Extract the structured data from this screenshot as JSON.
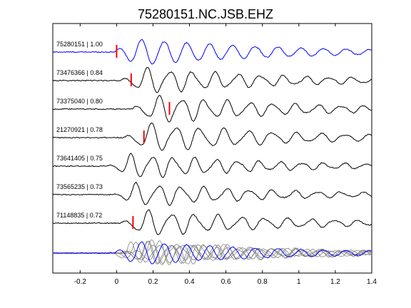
{
  "chart_data": {
    "type": "line",
    "title": "75280151.NC.JSB.EHZ",
    "xlabel": "",
    "ylabel": "",
    "xlim": [
      -0.35,
      1.4
    ],
    "xticks": [
      -0.2,
      0,
      0.2,
      0.4,
      0.6,
      0.8,
      1,
      1.2,
      1.4
    ],
    "xtick_labels": [
      "-0.2",
      "0",
      "0.2",
      "0.4",
      "0.6",
      "0.8",
      "1",
      "1.2",
      "1.4"
    ],
    "grid": false,
    "stack_note": "waveforms stacked vertically; bottom row overlays all traces",
    "traces": [
      {
        "label": "75280151 | 1.00",
        "id": "75280151",
        "cc": 1.0,
        "color": "#0000ff",
        "pick_time": 0.0,
        "onset": -0.02,
        "freq": 8.0,
        "amp": 1.0,
        "phase": 0.0
      },
      {
        "label": "73476366 | 0.84",
        "id": "73476366",
        "cc": 0.84,
        "color": "#000000",
        "pick_time": 0.08,
        "onset": 0.02,
        "freq": 8.0,
        "amp": 0.9,
        "phase": 0.5
      },
      {
        "label": "73375040 | 0.80",
        "id": "73375040",
        "cc": 0.8,
        "color": "#000000",
        "pick_time": 0.29,
        "onset": 0.08,
        "freq": 8.0,
        "amp": 0.95,
        "phase": 0.2
      },
      {
        "label": "21270921 | 0.78",
        "id": "21270921",
        "cc": 0.78,
        "color": "#000000",
        "pick_time": 0.15,
        "onset": 0.04,
        "freq": 7.5,
        "amp": 1.0,
        "phase": 0.8
      },
      {
        "label": "73641405 | 0.75",
        "id": "73641405",
        "cc": 0.75,
        "color": "#000000",
        "pick_time": null,
        "onset": -0.05,
        "freq": 8.5,
        "amp": 0.85,
        "phase": 1.1
      },
      {
        "label": "73565235 | 0.73",
        "id": "73565235",
        "cc": 0.73,
        "color": "#000000",
        "pick_time": null,
        "onset": -0.02,
        "freq": 8.0,
        "amp": 0.8,
        "phase": 1.6
      },
      {
        "label": "71148835 | 0.72",
        "id": "71148835",
        "cc": 0.72,
        "color": "#000000",
        "pick_time": 0.09,
        "onset": 0.02,
        "freq": 7.8,
        "amp": 0.9,
        "phase": 0.4
      }
    ],
    "overlay": {
      "label": "",
      "colors": {
        "reference": "#0000ff",
        "others": "#808080"
      }
    },
    "pick_color": "#ff0000"
  }
}
